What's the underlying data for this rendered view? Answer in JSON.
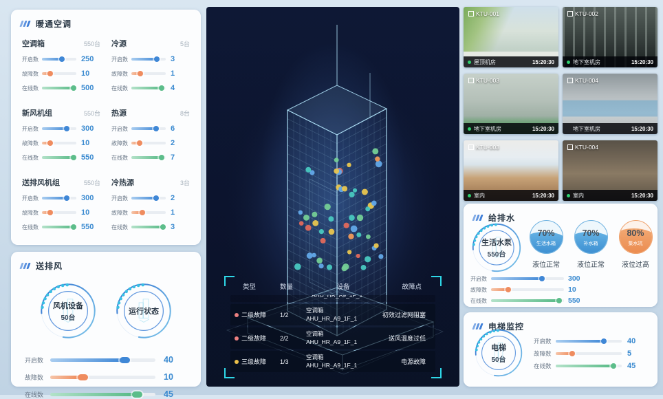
{
  "panels": {
    "hvac": {
      "title": "暖通空调",
      "groups": [
        {
          "name": "空调箱",
          "count": "550台",
          "metrics": [
            {
              "label": "开启数",
              "value": "250",
              "pct": 62,
              "color": "blue"
            },
            {
              "label": "故障数",
              "value": "10",
              "pct": 27,
              "color": "orange"
            },
            {
              "label": "在线数",
              "value": "500",
              "pct": 95,
              "color": "green"
            }
          ]
        },
        {
          "name": "冷源",
          "count": "5台",
          "metrics": [
            {
              "label": "开启数",
              "value": "3",
              "pct": 78,
              "color": "blue"
            },
            {
              "label": "故障数",
              "value": "1",
              "pct": 30,
              "color": "orange"
            },
            {
              "label": "在线数",
              "value": "4",
              "pct": 92,
              "color": "green"
            }
          ]
        },
        {
          "name": "新风机组",
          "count": "550台",
          "metrics": [
            {
              "label": "开启数",
              "value": "300",
              "pct": 75,
              "color": "blue"
            },
            {
              "label": "故障数",
              "value": "10",
              "pct": 27,
              "color": "orange"
            },
            {
              "label": "在线数",
              "value": "550",
              "pct": 95,
              "color": "green"
            }
          ]
        },
        {
          "name": "热源",
          "count": "8台",
          "metrics": [
            {
              "label": "开启数",
              "value": "6",
              "pct": 75,
              "color": "blue"
            },
            {
              "label": "故障数",
              "value": "2",
              "pct": 28,
              "color": "orange"
            },
            {
              "label": "在线数",
              "value": "7",
              "pct": 92,
              "color": "green"
            }
          ]
        },
        {
          "name": "送排风机组",
          "count": "550台",
          "metrics": [
            {
              "label": "开启数",
              "value": "300",
              "pct": 75,
              "color": "blue"
            },
            {
              "label": "故障数",
              "value": "10",
              "pct": 27,
              "color": "orange"
            },
            {
              "label": "在线数",
              "value": "550",
              "pct": 95,
              "color": "green"
            }
          ]
        },
        {
          "name": "冷热源",
          "count": "3台",
          "metrics": [
            {
              "label": "开启数",
              "value": "2",
              "pct": 75,
              "color": "blue"
            },
            {
              "label": "故障数",
              "value": "1",
              "pct": 35,
              "color": "orange"
            },
            {
              "label": "在线数",
              "value": "3",
              "pct": 95,
              "color": "green"
            }
          ]
        }
      ]
    },
    "fan": {
      "title": "送排风",
      "gauges": [
        {
          "line1": "风机设备",
          "line2": "50台"
        },
        {
          "line1": "运行状态",
          "line2": ""
        }
      ],
      "metrics": [
        {
          "label": "开启数",
          "value": "40",
          "pct": 70,
          "color": "blue"
        },
        {
          "label": "故障数",
          "value": "10",
          "pct": 30,
          "color": "orange"
        },
        {
          "label": "在线数",
          "value": "45",
          "pct": 82,
          "color": "green"
        }
      ]
    },
    "water": {
      "title": "给排水",
      "gauge": {
        "line1": "生活水泵",
        "line2": "550台"
      },
      "tanks": [
        {
          "pct": "70%",
          "name": "生活水箱",
          "status": "液位正常",
          "color": "blue"
        },
        {
          "pct": "70%",
          "name": "补水箱",
          "status": "液位正常",
          "color": "blue"
        },
        {
          "pct": "80%",
          "name": "集水坑",
          "status": "液位过高",
          "color": "orange"
        }
      ],
      "metrics": [
        {
          "label": "开启数",
          "value": "300",
          "pct": 72,
          "color": "blue"
        },
        {
          "label": "故障数",
          "value": "10",
          "pct": 25,
          "color": "orange"
        },
        {
          "label": "在线数",
          "value": "550",
          "pct": 95,
          "color": "green"
        }
      ]
    },
    "elevator": {
      "title": "电梯监控",
      "gauge": {
        "line1": "电梯",
        "line2": "50台"
      },
      "metrics": [
        {
          "label": "开启数",
          "value": "40",
          "pct": 75,
          "color": "blue"
        },
        {
          "label": "故障数",
          "value": "5",
          "pct": 27,
          "color": "orange"
        },
        {
          "label": "在线数",
          "value": "45",
          "pct": 90,
          "color": "green"
        }
      ]
    }
  },
  "cameras": [
    {
      "id": "KTU-001",
      "location": "屋顶机房",
      "time": "15:20:30",
      "online": true
    },
    {
      "id": "KTU-002",
      "location": "地下室机房",
      "time": "15:20:30",
      "online": true
    },
    {
      "id": "KTU-003",
      "location": "地下室机房",
      "time": "15:20:30",
      "online": true
    },
    {
      "id": "KTU-004",
      "location": "地下室机房",
      "time": "15:20:30",
      "online": false
    },
    {
      "id": "KTU-003",
      "location": "室内",
      "time": "15:20:30",
      "online": true
    },
    {
      "id": "KTU-004",
      "location": "室内",
      "time": "15:20:30",
      "online": true
    }
  ],
  "fault_table": {
    "headers": [
      "类型",
      "数量",
      "设备",
      "故障点"
    ],
    "partial_device": "AHU_HR_A9_1F_1",
    "rows": [
      {
        "level": "二级故障",
        "dot": "#ec8080",
        "qty": "1/2",
        "device_type": "空调箱",
        "device_id": "AHU_HR_A9_1F_1",
        "fault": "初效过滤网阻塞"
      },
      {
        "level": "二级故障",
        "dot": "#ec8080",
        "qty": "2/2",
        "device_type": "空调箱",
        "device_id": "AHU_HR_A9_1F_1",
        "fault": "送风温度过低"
      },
      {
        "level": "三级故障",
        "dot": "#ecc04a",
        "qty": "1/3",
        "device_type": "空调箱",
        "device_id": "AHU_HR_A9_1F_1",
        "fault": "电源故障"
      }
    ]
  },
  "center": {
    "dot_palette": [
      "#74ce96",
      "#e9c64f",
      "#f09a5b",
      "#e2695c",
      "#62a8e8",
      "#49c8c0"
    ],
    "dot_count": 52
  },
  "colors": {
    "accent_blue": "#3f87d6",
    "accent_orange": "#ee8655",
    "accent_green": "#56b985",
    "value_blue": "#3a8ad0",
    "bracket_cyan": "#2fd8e8",
    "online_green": "#2fd06e"
  }
}
